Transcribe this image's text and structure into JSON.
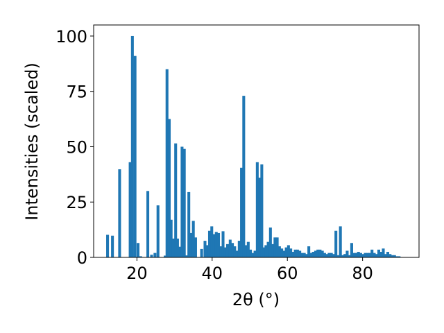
{
  "chart_data": {
    "type": "bar",
    "title": "",
    "xlabel": "2θ (°)",
    "ylabel": "Intensities (scaled)",
    "xlim": [
      8.5,
      95
    ],
    "ylim": [
      0,
      105
    ],
    "xticks": [
      20,
      40,
      60,
      80
    ],
    "yticks": [
      0,
      25,
      50,
      75,
      100
    ],
    "xtick_labels": [
      "20",
      "40",
      "60",
      "80"
    ],
    "ytick_labels": [
      "0",
      "25",
      "50",
      "75",
      "100"
    ],
    "grid": false,
    "bar_width": 0.75,
    "color": "#1f77b4",
    "x": [
      12.2,
      13.5,
      15.4,
      18.2,
      18.8,
      19.5,
      20.3,
      21.0,
      22.9,
      23.9,
      24.8,
      25.6,
      27.5,
      28.0,
      28.6,
      29.1,
      29.7,
      30.3,
      30.8,
      31.4,
      32.0,
      32.6,
      33.2,
      33.8,
      34.4,
      35.0,
      35.6,
      37.2,
      38.1,
      38.7,
      39.3,
      39.9,
      40.5,
      41.1,
      41.7,
      42.3,
      42.9,
      43.5,
      44.1,
      44.8,
      45.4,
      46.0,
      46.6,
      47.2,
      47.8,
      48.4,
      49.0,
      49.6,
      50.2,
      50.8,
      51.4,
      52.0,
      52.6,
      53.2,
      53.7,
      54.3,
      54.9,
      55.5,
      56.1,
      56.7,
      57.3,
      57.9,
      58.5,
      59.1,
      59.7,
      60.3,
      60.9,
      61.5,
      62.1,
      62.7,
      63.3,
      63.9,
      64.5,
      65.1,
      65.7,
      66.3,
      66.9,
      67.5,
      68.1,
      68.7,
      69.3,
      69.9,
      70.5,
      71.1,
      71.7,
      72.3,
      72.9,
      73.5,
      74.1,
      74.7,
      75.3,
      75.9,
      76.5,
      77.1,
      77.7,
      78.3,
      78.9,
      79.5,
      80.1,
      80.7,
      81.3,
      81.9,
      82.5,
      83.1,
      83.7,
      84.3,
      84.9,
      85.5,
      86.1,
      86.7,
      87.3,
      87.9,
      88.5,
      89.1,
      89.7
    ],
    "values": [
      10.2,
      9.8,
      39.8,
      43.0,
      100.0,
      91.0,
      6.5,
      0.5,
      30.0,
      1.2,
      2.0,
      23.5,
      0.8,
      85.0,
      62.5,
      17.0,
      8.5,
      51.5,
      8.5,
      4.8,
      50.0,
      49.0,
      0.9,
      29.5,
      11.0,
      16.5,
      9.0,
      3.8,
      7.5,
      5.5,
      12.0,
      14.0,
      10.5,
      11.5,
      11.0,
      5.0,
      11.8,
      4.5,
      6.0,
      8.0,
      6.5,
      5.0,
      3.0,
      7.5,
      40.5,
      73.0,
      5.5,
      7.0,
      3.5,
      2.0,
      3.0,
      43.0,
      36.0,
      42.0,
      4.5,
      5.5,
      7.0,
      13.5,
      6.0,
      9.0,
      9.0,
      5.0,
      4.0,
      3.0,
      4.5,
      5.5,
      4.0,
      2.5,
      3.5,
      3.5,
      3.0,
      2.0,
      2.0,
      1.5,
      5.0,
      2.0,
      2.5,
      3.0,
      3.5,
      3.5,
      3.0,
      2.0,
      1.5,
      2.0,
      2.0,
      1.5,
      12.0,
      1.0,
      14.0,
      1.0,
      1.5,
      3.0,
      1.0,
      6.5,
      2.0,
      2.0,
      2.5,
      2.0,
      1.5,
      2.0,
      2.0,
      2.0,
      3.5,
      2.0,
      1.5,
      3.5,
      2.5,
      4.0,
      1.5,
      2.5,
      1.5,
      1.0,
      1.0,
      0.5,
      0.5
    ]
  }
}
